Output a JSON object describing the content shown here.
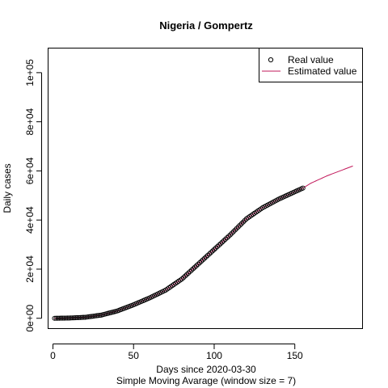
{
  "chart_data": {
    "type": "line",
    "title": "Nigeria / Gompertz",
    "xlabel": "Days since 2020-03-30",
    "subtitle": "Simple Moving Avarage (window size = 7)",
    "ylabel": "Daily cases",
    "xlim": [
      -3,
      192
    ],
    "ylim": [
      -4200,
      110000
    ],
    "x_ticks": [
      0,
      50,
      100,
      150
    ],
    "x_tick_labels": [
      "0",
      "50",
      "100",
      "150"
    ],
    "y_ticks": [
      0,
      20000,
      40000,
      60000,
      80000,
      100000
    ],
    "y_tick_labels": [
      "0e+00",
      "2e+04",
      "4e+04",
      "6e+04",
      "8e+04",
      "1e+05"
    ],
    "grid": false,
    "legend": {
      "position": "top-right",
      "entries": [
        {
          "label": "Real value",
          "marker": "open-circle",
          "color": "#000000"
        },
        {
          "label": "Estimated value",
          "marker": "line",
          "color": "#c2185b"
        }
      ]
    },
    "series": [
      {
        "name": "Real value",
        "style": "points",
        "color": "#000000",
        "x_range": [
          1,
          155
        ],
        "anchors_x": [
          1,
          10,
          20,
          30,
          40,
          50,
          60,
          70,
          80,
          90,
          100,
          110,
          120,
          130,
          140,
          150,
          155
        ],
        "anchors_y": [
          0,
          100,
          400,
          1300,
          3000,
          5500,
          8300,
          11500,
          16000,
          22000,
          28000,
          34000,
          40500,
          45000,
          48500,
          51500,
          53000
        ]
      },
      {
        "name": "Estimated value",
        "style": "line",
        "color": "#c2185b",
        "x": [
          1,
          10,
          20,
          30,
          40,
          50,
          60,
          70,
          80,
          90,
          100,
          110,
          120,
          130,
          140,
          150,
          155,
          160,
          170,
          180,
          186
        ],
        "y": [
          0,
          100,
          400,
          1300,
          3000,
          5500,
          8300,
          11500,
          16000,
          22000,
          28000,
          34000,
          40500,
          45000,
          48500,
          51500,
          53000,
          55000,
          58000,
          60500,
          62000
        ]
      }
    ]
  }
}
